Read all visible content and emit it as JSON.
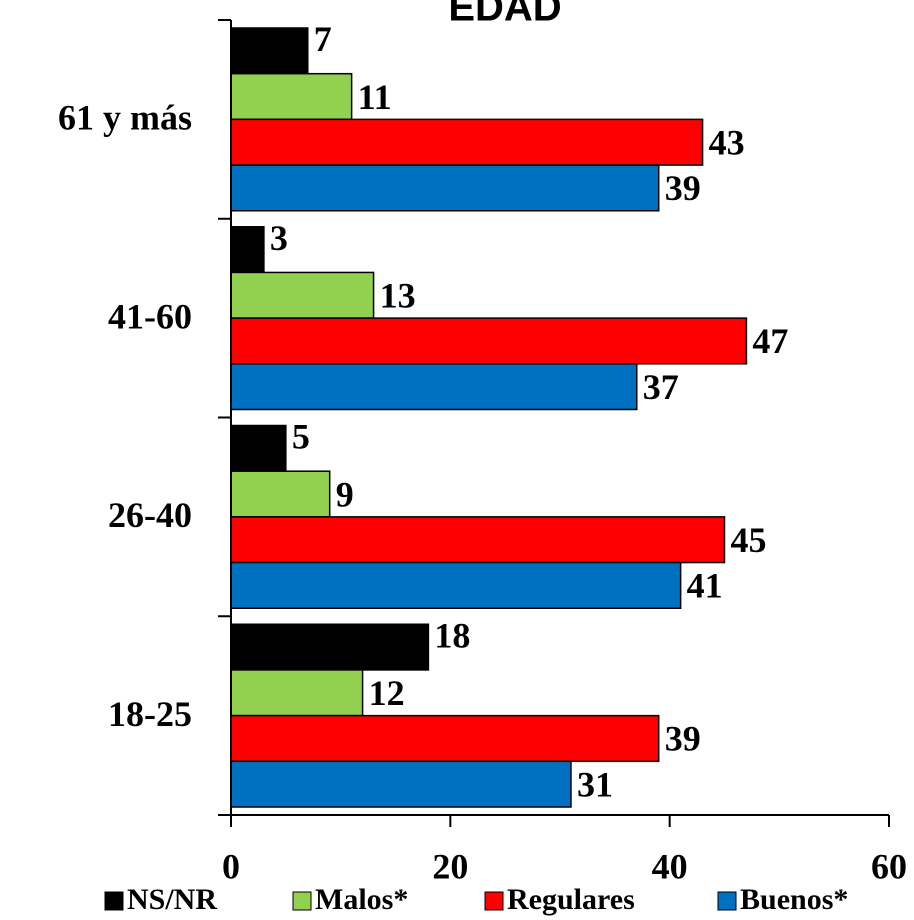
{
  "chart_data": {
    "type": "bar",
    "orientation": "horizontal",
    "title": "EDAD",
    "categories": [
      "61 y más",
      "41-60",
      "26-40",
      "18-25"
    ],
    "series": [
      {
        "name": "NS/NR",
        "color": "#000000",
        "values": [
          7,
          3,
          5,
          18
        ]
      },
      {
        "name": "Malos*",
        "color": "#92d050",
        "values": [
          11,
          13,
          9,
          12
        ]
      },
      {
        "name": "Regulares",
        "color": "#ff0000",
        "values": [
          43,
          47,
          45,
          39
        ]
      },
      {
        "name": "Buenos*",
        "color": "#0070c0",
        "values": [
          39,
          37,
          41,
          31
        ]
      }
    ],
    "xlim": [
      0,
      60
    ],
    "xticks": [
      0,
      20,
      40,
      60
    ],
    "legend": "bottom"
  }
}
